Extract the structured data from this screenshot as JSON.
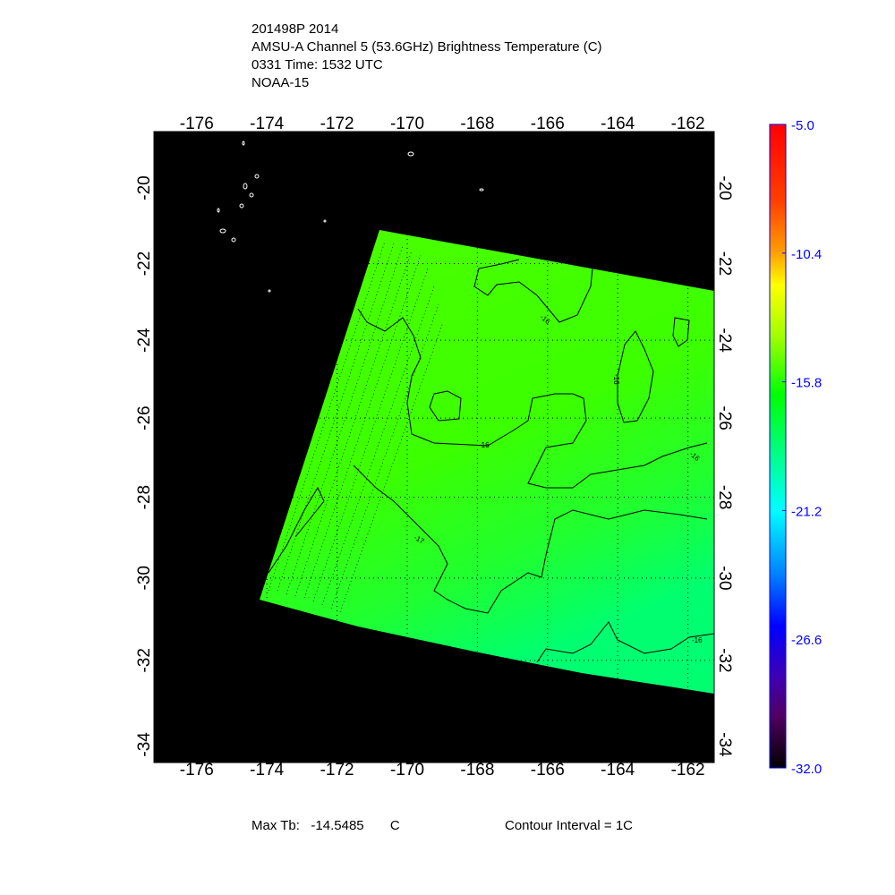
{
  "title_lines": [
    "201498P 2014",
    "AMSU-A Channel 5 (53.6GHz) Brightness Temperature (C)",
    "0331 Time: 1532 UTC",
    "NOAA-15"
  ],
  "chart_data": {
    "type": "heatmap",
    "projection": "mercator",
    "lon_ticks": [
      -176,
      -174,
      -172,
      -170,
      -168,
      -166,
      -164,
      -162
    ],
    "lat_ticks": [
      -20,
      -22,
      -24,
      -26,
      -28,
      -30,
      -32,
      -34
    ],
    "lon_range": [
      -177.3,
      -161.3
    ],
    "lat_range": [
      -18.4,
      -34.6
    ],
    "grid": "dotted",
    "colorbar": {
      "ticks": [
        "-5.0",
        "-10.4",
        "-15.8",
        "-21.2",
        "-26.6",
        "-32.0"
      ],
      "range": [
        -32.0,
        -5.0
      ],
      "colors": [
        "#000000",
        "#600080",
        "#0000ff",
        "#00ffff",
        "#00ff00",
        "#ffff00",
        "#ff0000"
      ],
      "tick_color": "#0000ff"
    },
    "contour_labels": [
      "-16",
      "-16",
      "-16",
      "-17",
      "-16",
      "-16"
    ],
    "background": "#000000",
    "swath_colors": [
      "#4cff00",
      "#00ff70"
    ]
  },
  "footer": {
    "max_tb_label": "Max Tb:",
    "max_tb_value": "-14.5485",
    "max_tb_unit": "C",
    "contour_interval": "Contour Interval = 1C"
  }
}
